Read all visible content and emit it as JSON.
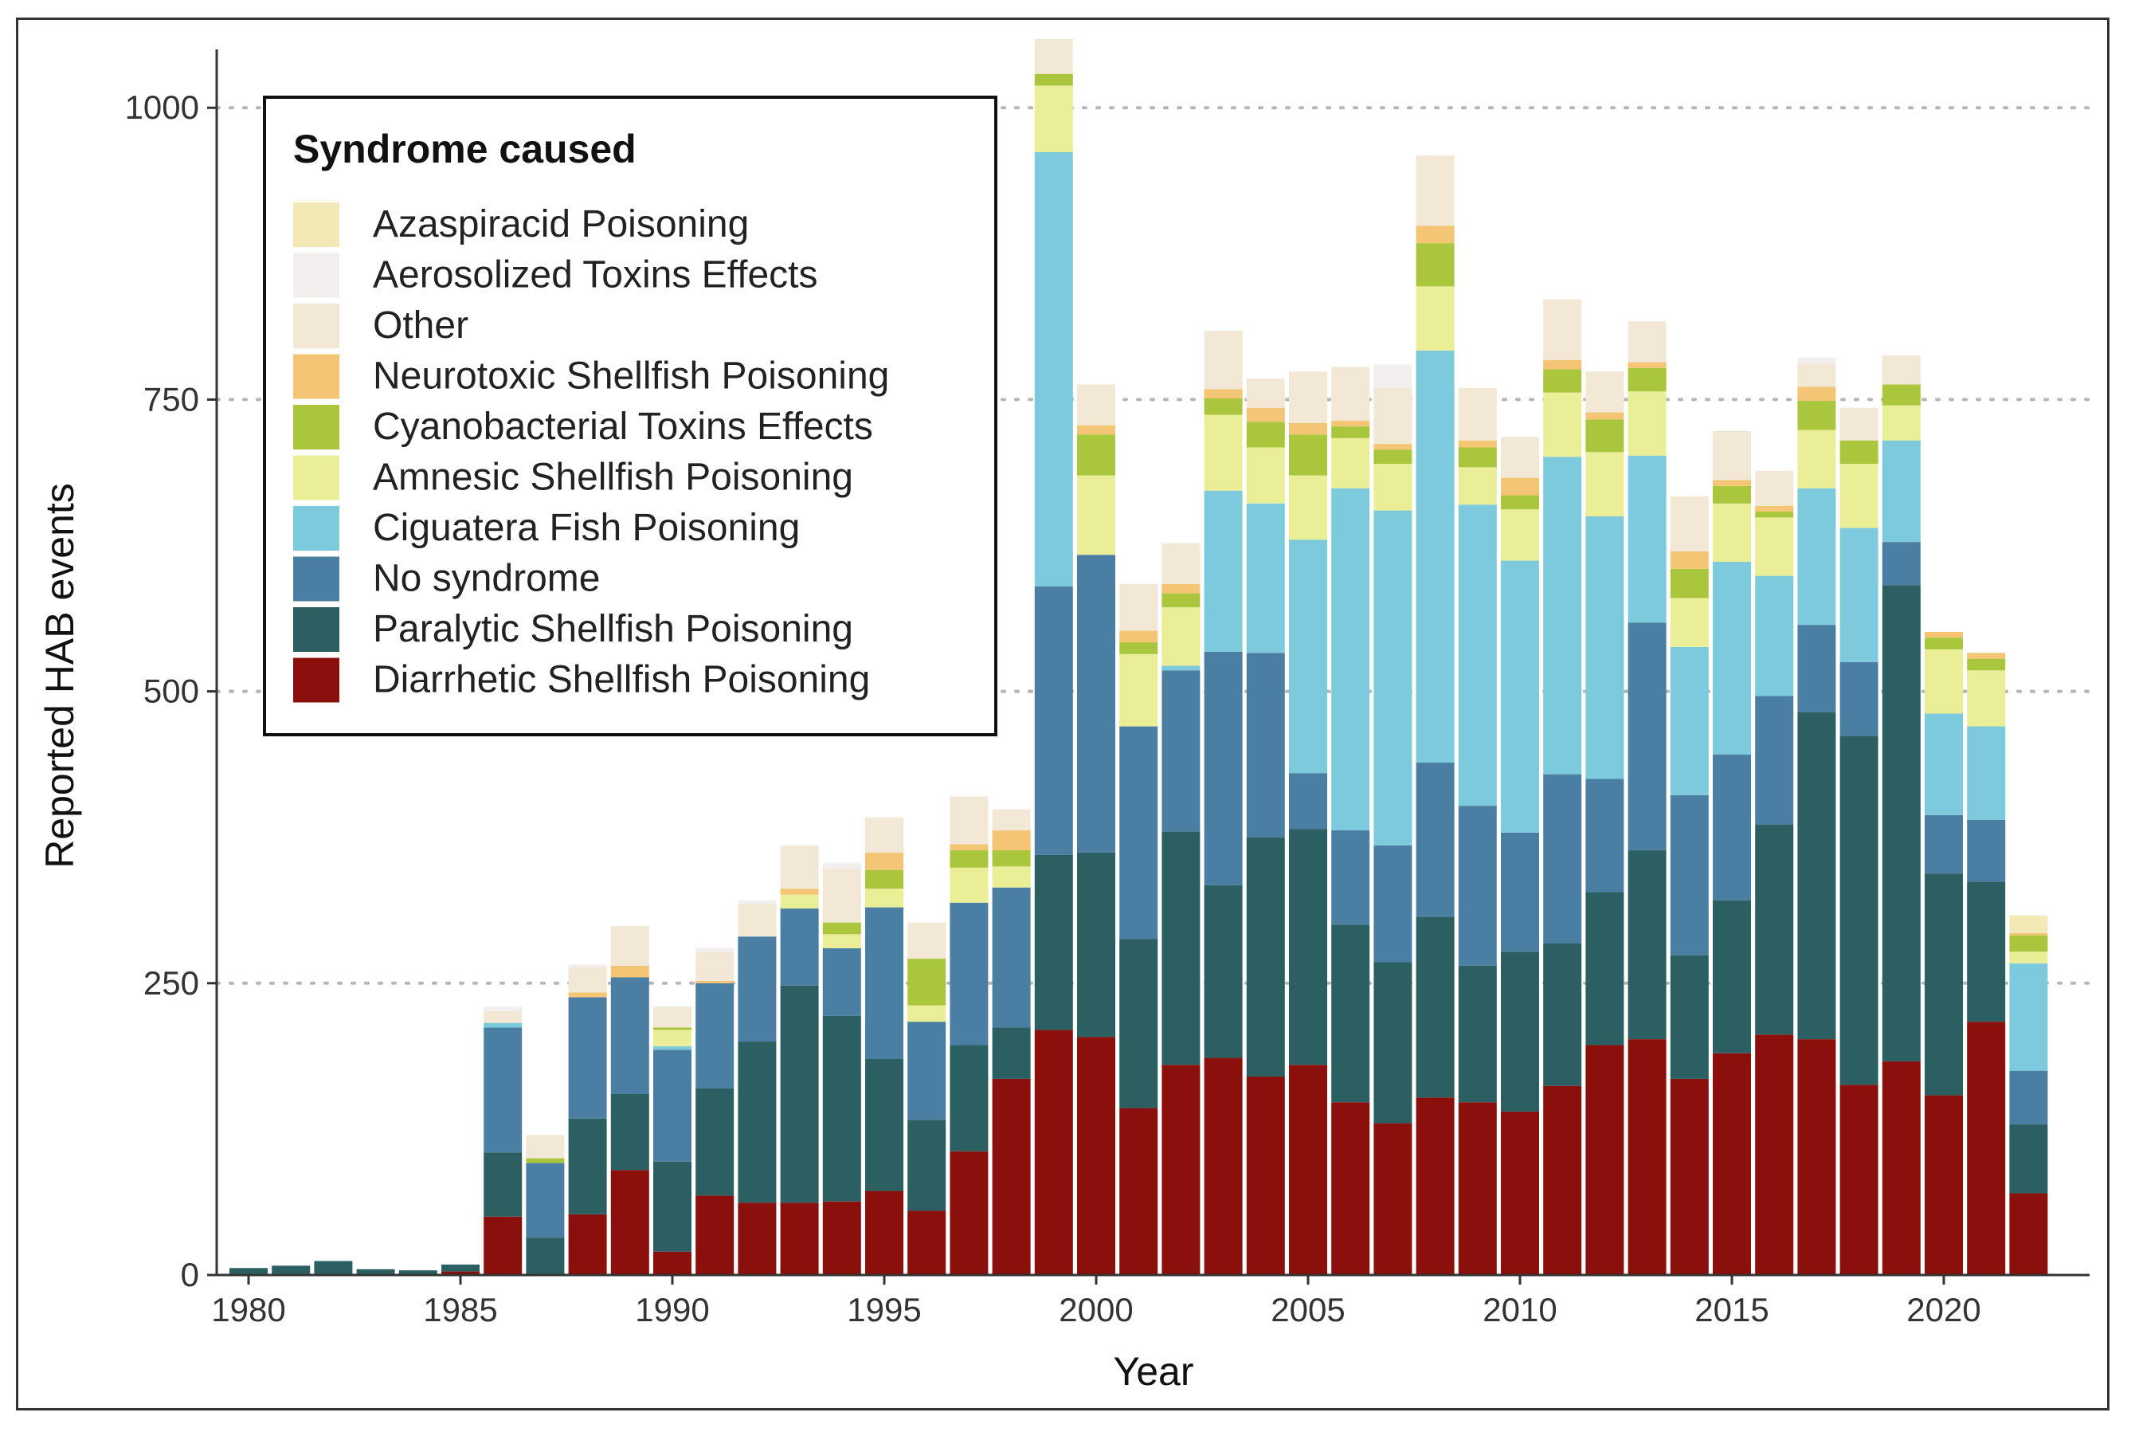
{
  "chart_data": {
    "type": "bar",
    "stacked": true,
    "xlabel": "Year",
    "ylabel": "Reported HAB events",
    "ylim": [
      0,
      1050
    ],
    "yticks": [
      0,
      250,
      500,
      750,
      1000
    ],
    "xticks": [
      1980,
      1985,
      1990,
      1995,
      2000,
      2005,
      2010,
      2015,
      2020
    ],
    "legend": {
      "title": "Syndrome caused",
      "position": "top-left"
    },
    "categories": [
      1980,
      1981,
      1982,
      1983,
      1984,
      1985,
      1986,
      1987,
      1988,
      1989,
      1990,
      1991,
      1992,
      1993,
      1994,
      1995,
      1996,
      1997,
      1998,
      1999,
      2000,
      2001,
      2002,
      2003,
      2004,
      2005,
      2006,
      2007,
      2008,
      2009,
      2010,
      2011,
      2012,
      2013,
      2014,
      2015,
      2016,
      2017,
      2018,
      2019,
      2020,
      2021,
      2022
    ],
    "series": [
      {
        "name": "Diarrhetic Shellfish Poisoning",
        "color": "#8b0f0a",
        "values": [
          0,
          0,
          0,
          0,
          0,
          3,
          50,
          0,
          52,
          90,
          20,
          68,
          62,
          62,
          63,
          72,
          55,
          106,
          168,
          210,
          204,
          143,
          180,
          186,
          170,
          180,
          148,
          130,
          152,
          148,
          140,
          162,
          197,
          202,
          168,
          190,
          206,
          202,
          163,
          183,
          154,
          217,
          70
        ]
      },
      {
        "name": "Paralytic Shellfish Poisoning",
        "color": "#2c5f62",
        "values": [
          6,
          8,
          12,
          5,
          4,
          6,
          55,
          32,
          82,
          65,
          77,
          92,
          138,
          186,
          159,
          113,
          78,
          91,
          44,
          150,
          158,
          145,
          200,
          148,
          205,
          202,
          152,
          138,
          155,
          117,
          137,
          122,
          131,
          162,
          106,
          131,
          180,
          280,
          299,
          408,
          190,
          120,
          59
        ]
      },
      {
        "name": "No syndrome",
        "color": "#4a7fa3",
        "values": [
          0,
          0,
          0,
          0,
          0,
          0,
          107,
          64,
          104,
          100,
          96,
          90,
          90,
          66,
          58,
          130,
          84,
          122,
          120,
          230,
          255,
          182,
          138,
          200,
          158,
          48,
          81,
          100,
          132,
          137,
          102,
          145,
          97,
          195,
          137,
          125,
          110,
          75,
          63,
          37,
          50,
          53,
          46
        ]
      },
      {
        "name": "Ciguatera Fish Poisoning",
        "color": "#7dcadc",
        "values": [
          0,
          0,
          0,
          0,
          0,
          0,
          4,
          0,
          0,
          0,
          3,
          0,
          0,
          0,
          0,
          0,
          0,
          0,
          0,
          372,
          0,
          0,
          4,
          138,
          128,
          200,
          293,
          287,
          353,
          258,
          233,
          272,
          225,
          143,
          127,
          165,
          103,
          117,
          115,
          87,
          87,
          80,
          92
        ]
      },
      {
        "name": "Amnesic Shellfish Poisoning",
        "color": "#e9ee97",
        "values": [
          0,
          0,
          0,
          0,
          0,
          0,
          0,
          0,
          0,
          0,
          14,
          0,
          0,
          12,
          12,
          16,
          14,
          30,
          18,
          57,
          68,
          62,
          50,
          65,
          48,
          55,
          43,
          40,
          55,
          32,
          44,
          55,
          55,
          55,
          42,
          50,
          50,
          50,
          55,
          30,
          55,
          48,
          10
        ]
      },
      {
        "name": "Cyanobacterial Toxins Effects",
        "color": "#a9c63c",
        "values": [
          0,
          0,
          0,
          0,
          0,
          0,
          0,
          4,
          0,
          0,
          2,
          0,
          0,
          0,
          10,
          16,
          40,
          15,
          14,
          10,
          35,
          10,
          12,
          14,
          22,
          35,
          10,
          12,
          37,
          17,
          12,
          20,
          28,
          20,
          25,
          15,
          5,
          25,
          20,
          18,
          10,
          10,
          14
        ]
      },
      {
        "name": "Neurotoxic Shellfish Poisoning",
        "color": "#f3c574",
        "values": [
          0,
          0,
          0,
          0,
          0,
          0,
          0,
          0,
          4,
          10,
          0,
          2,
          0,
          5,
          0,
          15,
          0,
          5,
          17,
          0,
          8,
          10,
          8,
          8,
          12,
          10,
          5,
          5,
          15,
          6,
          15,
          8,
          6,
          5,
          15,
          5,
          5,
          12,
          0,
          0,
          5,
          5,
          2
        ]
      },
      {
        "name": "Other",
        "color": "#f3e8d5",
        "values": [
          0,
          0,
          0,
          0,
          0,
          0,
          10,
          20,
          22,
          34,
          18,
          25,
          28,
          37,
          46,
          30,
          31,
          41,
          18,
          30,
          35,
          40,
          35,
          50,
          25,
          44,
          46,
          48,
          60,
          45,
          35,
          52,
          35,
          35,
          47,
          42,
          30,
          20,
          28,
          25,
          0,
          0,
          0
        ]
      },
      {
        "name": "Aerosolized Toxins Effects",
        "color": "#f4efef",
        "values": [
          0,
          0,
          0,
          0,
          0,
          0,
          4,
          0,
          2,
          0,
          0,
          3,
          3,
          0,
          5,
          0,
          0,
          0,
          0,
          0,
          0,
          0,
          0,
          0,
          0,
          0,
          0,
          20,
          0,
          0,
          0,
          0,
          0,
          0,
          0,
          0,
          0,
          5,
          0,
          0,
          0,
          0,
          0
        ]
      },
      {
        "name": "Azaspiracid Poisoning",
        "color": "#f3e9b6",
        "values": [
          0,
          0,
          0,
          0,
          0,
          0,
          0,
          0,
          0,
          0,
          0,
          0,
          0,
          0,
          0,
          0,
          0,
          0,
          0,
          0,
          0,
          0,
          0,
          0,
          0,
          0,
          0,
          0,
          0,
          0,
          0,
          0,
          0,
          0,
          0,
          0,
          0,
          0,
          0,
          0,
          0,
          0,
          15
        ]
      }
    ],
    "legend_order": [
      "Azaspiracid Poisoning",
      "Aerosolized Toxins Effects",
      "Other",
      "Neurotoxic Shellfish Poisoning",
      "Cyanobacterial Toxins Effects",
      "Amnesic Shellfish Poisoning",
      "Ciguatera Fish Poisoning",
      "No syndrome",
      "Paralytic Shellfish Poisoning",
      "Diarrhetic Shellfish Poisoning"
    ]
  }
}
